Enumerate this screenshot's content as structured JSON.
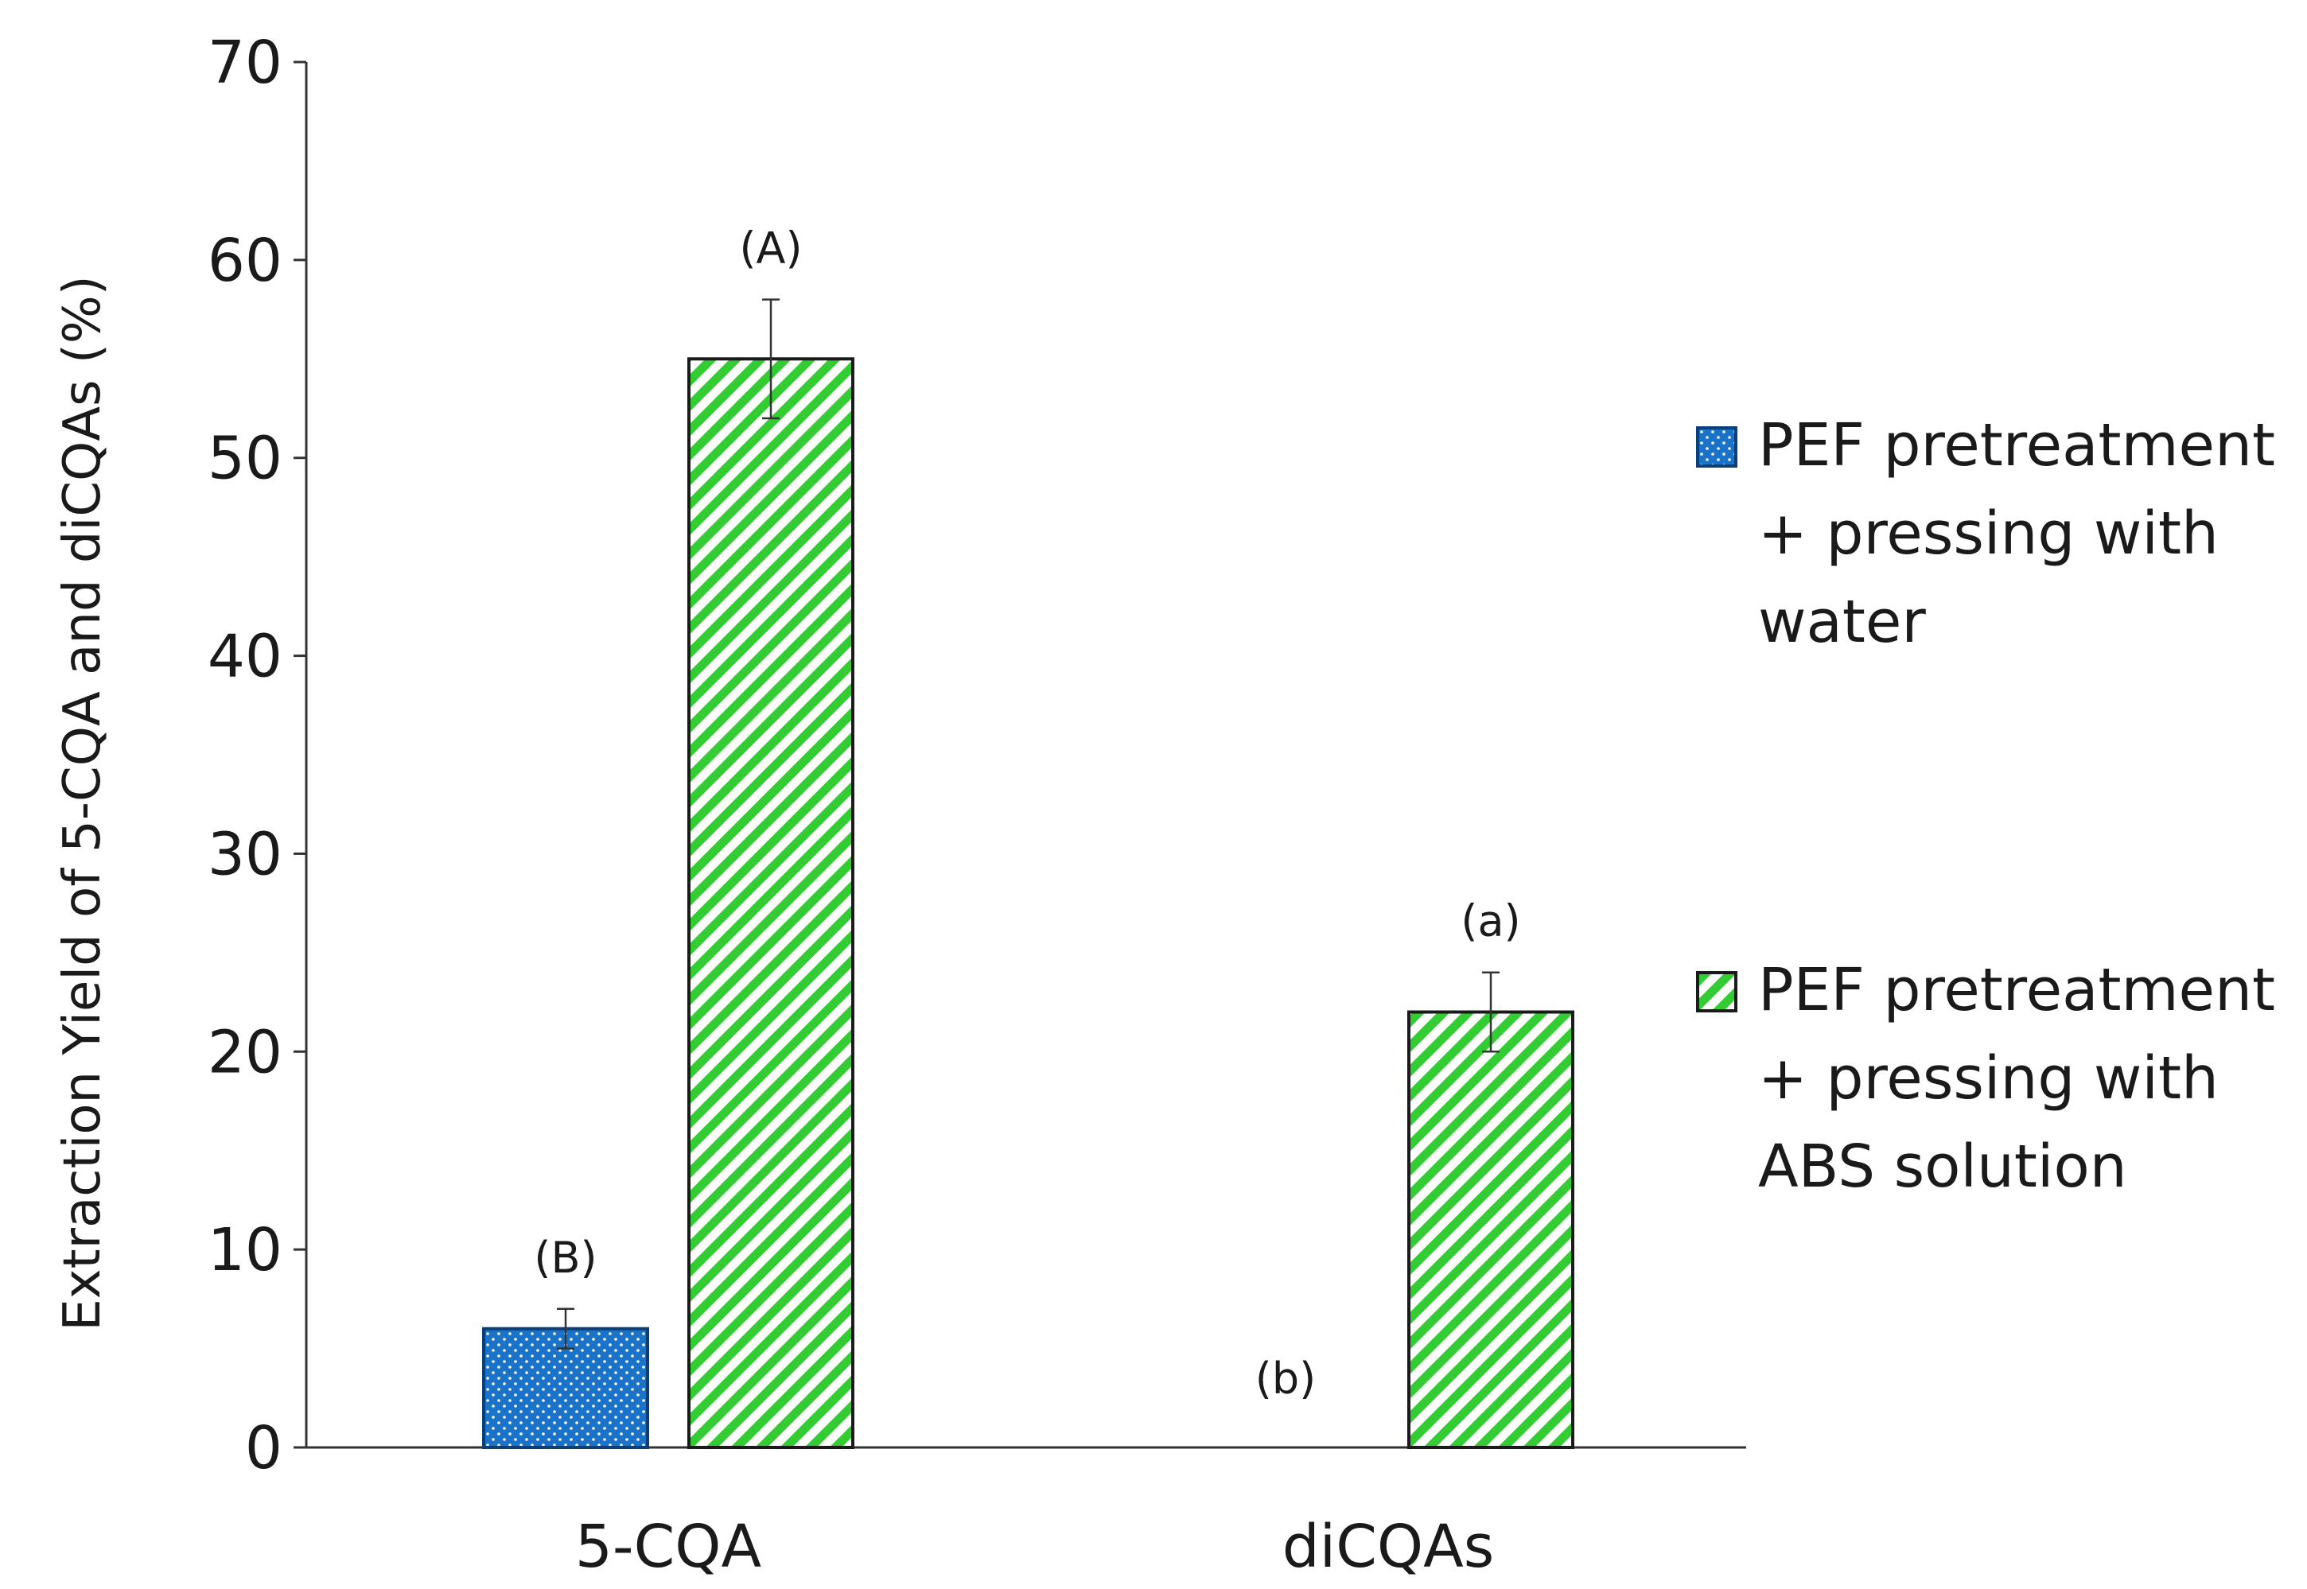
{
  "chart_data": {
    "type": "bar",
    "title": "",
    "xlabel": "",
    "ylabel": "Extraction Yield of 5-CQA and diCQAs (%)",
    "ylim": [
      0,
      70
    ],
    "yticks": [
      0,
      10,
      20,
      30,
      40,
      50,
      60,
      70
    ],
    "grid": false,
    "legend_position": "right",
    "categories": [
      "5-CQA",
      "diCQAs"
    ],
    "series": [
      {
        "name": "PEF pretreatment + pressing with water",
        "legend_lines": [
          "PEF pretreatment",
          "+ pressing with",
          "water"
        ],
        "color": "#1a73c8",
        "pattern": "dots",
        "values": [
          6,
          0
        ],
        "errors": [
          1,
          0
        ],
        "annotations": [
          "(B)",
          "(b)"
        ]
      },
      {
        "name": "PEF pretreatment + pressing with ABS solution",
        "legend_lines": [
          "PEF pretreatment",
          "+ pressing with",
          "ABS solution"
        ],
        "color": "#33cc33",
        "pattern": "diagonal-stripes",
        "values": [
          55,
          22
        ],
        "errors": [
          3,
          2
        ],
        "annotations": [
          "(A)",
          "(a)"
        ]
      }
    ]
  }
}
